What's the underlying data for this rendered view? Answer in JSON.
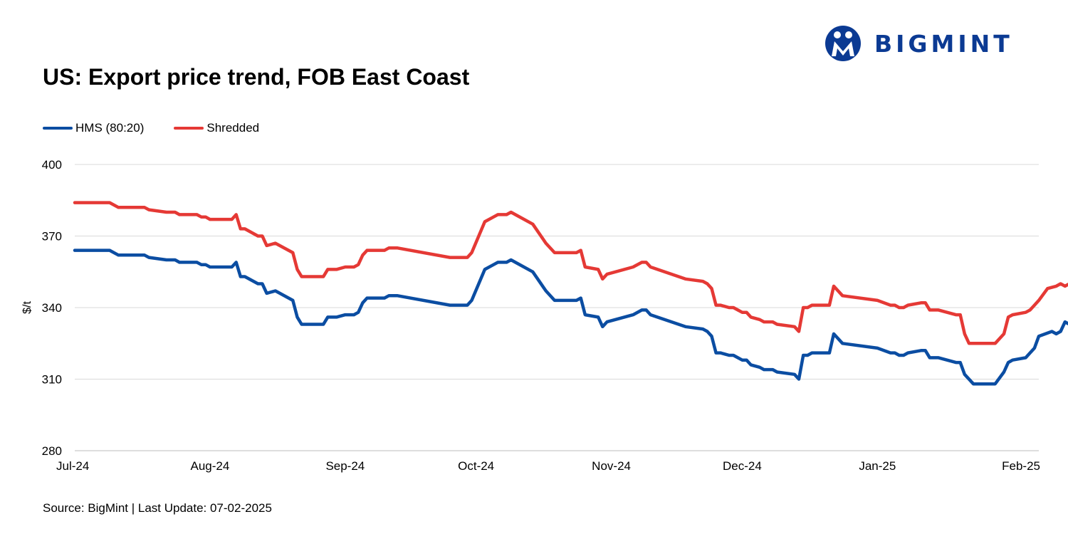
{
  "brand": {
    "name": "BIGMINT",
    "color": "#0b3a93"
  },
  "chart_data": {
    "type": "line",
    "title": "US: Export price trend, FOB East Coast",
    "ylabel": "$/t",
    "xlabel": "",
    "ylim": [
      280,
      400
    ],
    "yticks": [
      280,
      310,
      340,
      370,
      400
    ],
    "xlim": [
      "2024-07-01",
      "2025-02-07"
    ],
    "xticks": [
      {
        "date": "2024-07-01",
        "label": "Jul-24"
      },
      {
        "date": "2024-08-01",
        "label": "Aug-24"
      },
      {
        "date": "2024-09-01",
        "label": "Sep-24"
      },
      {
        "date": "2024-10-01",
        "label": "Oct-24"
      },
      {
        "date": "2024-11-01",
        "label": "Nov-24"
      },
      {
        "date": "2024-12-01",
        "label": "Dec-24"
      },
      {
        "date": "2025-01-01",
        "label": "Jan-25"
      },
      {
        "date": "2025-02-01",
        "label": "Feb-25"
      }
    ],
    "grid": true,
    "legend_position": "top-left",
    "series": [
      {
        "name": "HMS (80:20)",
        "color": "#0b4da2",
        "points": [
          [
            "2024-07-01",
            364
          ],
          [
            "2024-07-09",
            364
          ],
          [
            "2024-07-11",
            362
          ],
          [
            "2024-07-17",
            362
          ],
          [
            "2024-07-18",
            361
          ],
          [
            "2024-07-22",
            360
          ],
          [
            "2024-07-24",
            360
          ],
          [
            "2024-07-25",
            359
          ],
          [
            "2024-07-29",
            359
          ],
          [
            "2024-07-30",
            358
          ],
          [
            "2024-07-31",
            358
          ],
          [
            "2024-08-01",
            357
          ],
          [
            "2024-08-06",
            357
          ],
          [
            "2024-08-07",
            359
          ],
          [
            "2024-08-08",
            353
          ],
          [
            "2024-08-09",
            353
          ],
          [
            "2024-08-12",
            350
          ],
          [
            "2024-08-13",
            350
          ],
          [
            "2024-08-14",
            346
          ],
          [
            "2024-08-16",
            347
          ],
          [
            "2024-08-20",
            343
          ],
          [
            "2024-08-21",
            336
          ],
          [
            "2024-08-22",
            333
          ],
          [
            "2024-08-27",
            333
          ],
          [
            "2024-08-28",
            336
          ],
          [
            "2024-08-30",
            336
          ],
          [
            "2024-09-01",
            337
          ],
          [
            "2024-09-03",
            337
          ],
          [
            "2024-09-04",
            338
          ],
          [
            "2024-09-05",
            342
          ],
          [
            "2024-09-06",
            344
          ],
          [
            "2024-09-10",
            344
          ],
          [
            "2024-09-11",
            345
          ],
          [
            "2024-09-13",
            345
          ],
          [
            "2024-09-25",
            341
          ],
          [
            "2024-09-29",
            341
          ],
          [
            "2024-09-30",
            343
          ],
          [
            "2024-10-03",
            356
          ],
          [
            "2024-10-05",
            358
          ],
          [
            "2024-10-06",
            359
          ],
          [
            "2024-10-08",
            359
          ],
          [
            "2024-10-09",
            360
          ],
          [
            "2024-10-10",
            359
          ],
          [
            "2024-10-14",
            355
          ],
          [
            "2024-10-17",
            347
          ],
          [
            "2024-10-19",
            343
          ],
          [
            "2024-10-24",
            343
          ],
          [
            "2024-10-25",
            344
          ],
          [
            "2024-10-26",
            337
          ],
          [
            "2024-10-29",
            336
          ],
          [
            "2024-10-30",
            332
          ],
          [
            "2024-10-31",
            334
          ],
          [
            "2024-11-06",
            337
          ],
          [
            "2024-11-08",
            339
          ],
          [
            "2024-11-09",
            339
          ],
          [
            "2024-11-10",
            337
          ],
          [
            "2024-11-18",
            332
          ],
          [
            "2024-11-22",
            331
          ],
          [
            "2024-11-23",
            330
          ],
          [
            "2024-11-24",
            328
          ],
          [
            "2024-11-25",
            321
          ],
          [
            "2024-11-26",
            321
          ],
          [
            "2024-11-28",
            320
          ],
          [
            "2024-11-29",
            320
          ],
          [
            "2024-11-30",
            319
          ],
          [
            "2024-12-01",
            318
          ],
          [
            "2024-12-02",
            318
          ],
          [
            "2024-12-03",
            316
          ],
          [
            "2024-12-05",
            315
          ],
          [
            "2024-12-06",
            314
          ],
          [
            "2024-12-08",
            314
          ],
          [
            "2024-12-09",
            313
          ],
          [
            "2024-12-13",
            312
          ],
          [
            "2024-12-14",
            310
          ],
          [
            "2024-12-15",
            320
          ],
          [
            "2024-12-16",
            320
          ],
          [
            "2024-12-17",
            321
          ],
          [
            "2024-12-21",
            321
          ],
          [
            "2024-12-22",
            329
          ],
          [
            "2024-12-24",
            325
          ],
          [
            "2025-01-01",
            323
          ],
          [
            "2025-01-04",
            321
          ],
          [
            "2025-01-05",
            321
          ],
          [
            "2025-01-06",
            320
          ],
          [
            "2025-01-07",
            320
          ],
          [
            "2025-01-08",
            321
          ],
          [
            "2025-01-11",
            322
          ],
          [
            "2025-01-12",
            322
          ],
          [
            "2025-01-13",
            319
          ],
          [
            "2025-01-15",
            319
          ],
          [
            "2025-01-19",
            317
          ],
          [
            "2025-01-20",
            317
          ],
          [
            "2025-01-21",
            312
          ],
          [
            "2025-01-23",
            308
          ],
          [
            "2025-01-28",
            308
          ],
          [
            "2025-01-30",
            313
          ],
          [
            "2025-01-31",
            317
          ],
          [
            "2025-02-01",
            318
          ],
          [
            "2025-02-04",
            319
          ],
          [
            "2025-02-05",
            321
          ],
          [
            "2025-02-06",
            323
          ],
          [
            "2025-02-07",
            328
          ],
          [
            "2025-02-10",
            330
          ],
          [
            "2025-02-11",
            329
          ],
          [
            "2025-02-12",
            330
          ],
          [
            "2025-02-13",
            334
          ],
          [
            "2025-02-14",
            333
          ]
        ]
      },
      {
        "name": "Shredded",
        "color": "#e53935",
        "points": [
          [
            "2024-07-01",
            384
          ],
          [
            "2024-07-09",
            384
          ],
          [
            "2024-07-11",
            382
          ],
          [
            "2024-07-17",
            382
          ],
          [
            "2024-07-18",
            381
          ],
          [
            "2024-07-22",
            380
          ],
          [
            "2024-07-24",
            380
          ],
          [
            "2024-07-25",
            379
          ],
          [
            "2024-07-29",
            379
          ],
          [
            "2024-07-30",
            378
          ],
          [
            "2024-07-31",
            378
          ],
          [
            "2024-08-01",
            377
          ],
          [
            "2024-08-06",
            377
          ],
          [
            "2024-08-07",
            379
          ],
          [
            "2024-08-08",
            373
          ],
          [
            "2024-08-09",
            373
          ],
          [
            "2024-08-12",
            370
          ],
          [
            "2024-08-13",
            370
          ],
          [
            "2024-08-14",
            366
          ],
          [
            "2024-08-16",
            367
          ],
          [
            "2024-08-20",
            363
          ],
          [
            "2024-08-21",
            356
          ],
          [
            "2024-08-22",
            353
          ],
          [
            "2024-08-27",
            353
          ],
          [
            "2024-08-28",
            356
          ],
          [
            "2024-08-30",
            356
          ],
          [
            "2024-09-01",
            357
          ],
          [
            "2024-09-03",
            357
          ],
          [
            "2024-09-04",
            358
          ],
          [
            "2024-09-05",
            362
          ],
          [
            "2024-09-06",
            364
          ],
          [
            "2024-09-10",
            364
          ],
          [
            "2024-09-11",
            365
          ],
          [
            "2024-09-13",
            365
          ],
          [
            "2024-09-25",
            361
          ],
          [
            "2024-09-29",
            361
          ],
          [
            "2024-09-30",
            363
          ],
          [
            "2024-10-03",
            376
          ],
          [
            "2024-10-05",
            378
          ],
          [
            "2024-10-06",
            379
          ],
          [
            "2024-10-08",
            379
          ],
          [
            "2024-10-09",
            380
          ],
          [
            "2024-10-10",
            379
          ],
          [
            "2024-10-14",
            375
          ],
          [
            "2024-10-17",
            367
          ],
          [
            "2024-10-19",
            363
          ],
          [
            "2024-10-24",
            363
          ],
          [
            "2024-10-25",
            364
          ],
          [
            "2024-10-26",
            357
          ],
          [
            "2024-10-29",
            356
          ],
          [
            "2024-10-30",
            352
          ],
          [
            "2024-10-31",
            354
          ],
          [
            "2024-11-06",
            357
          ],
          [
            "2024-11-08",
            359
          ],
          [
            "2024-11-09",
            359
          ],
          [
            "2024-11-10",
            357
          ],
          [
            "2024-11-18",
            352
          ],
          [
            "2024-11-22",
            351
          ],
          [
            "2024-11-23",
            350
          ],
          [
            "2024-11-24",
            348
          ],
          [
            "2024-11-25",
            341
          ],
          [
            "2024-11-26",
            341
          ],
          [
            "2024-11-28",
            340
          ],
          [
            "2024-11-29",
            340
          ],
          [
            "2024-11-30",
            339
          ],
          [
            "2024-12-01",
            338
          ],
          [
            "2024-12-02",
            338
          ],
          [
            "2024-12-03",
            336
          ],
          [
            "2024-12-05",
            335
          ],
          [
            "2024-12-06",
            334
          ],
          [
            "2024-12-08",
            334
          ],
          [
            "2024-12-09",
            333
          ],
          [
            "2024-12-13",
            332
          ],
          [
            "2024-12-14",
            330
          ],
          [
            "2024-12-15",
            340
          ],
          [
            "2024-12-16",
            340
          ],
          [
            "2024-12-17",
            341
          ],
          [
            "2024-12-21",
            341
          ],
          [
            "2024-12-22",
            349
          ],
          [
            "2024-12-24",
            345
          ],
          [
            "2025-01-01",
            343
          ],
          [
            "2025-01-04",
            341
          ],
          [
            "2025-01-05",
            341
          ],
          [
            "2025-01-06",
            340
          ],
          [
            "2025-01-07",
            340
          ],
          [
            "2025-01-08",
            341
          ],
          [
            "2025-01-11",
            342
          ],
          [
            "2025-01-12",
            342
          ],
          [
            "2025-01-13",
            339
          ],
          [
            "2025-01-15",
            339
          ],
          [
            "2025-01-19",
            337
          ],
          [
            "2025-01-20",
            337
          ],
          [
            "2025-01-21",
            329
          ],
          [
            "2025-01-22",
            325
          ],
          [
            "2025-01-28",
            325
          ],
          [
            "2025-01-30",
            329
          ],
          [
            "2025-01-31",
            336
          ],
          [
            "2025-02-01",
            337
          ],
          [
            "2025-02-04",
            338
          ],
          [
            "2025-02-05",
            339
          ],
          [
            "2025-02-06",
            341
          ],
          [
            "2025-02-07",
            343
          ],
          [
            "2025-02-09",
            348
          ],
          [
            "2025-02-11",
            349
          ],
          [
            "2025-02-12",
            350
          ],
          [
            "2025-02-13",
            349
          ],
          [
            "2025-02-14",
            350
          ],
          [
            "2025-02-15",
            355
          ],
          [
            "2025-02-16",
            354
          ]
        ]
      }
    ],
    "source": "Source: BigMint | Last Update: 07-02-2025"
  }
}
